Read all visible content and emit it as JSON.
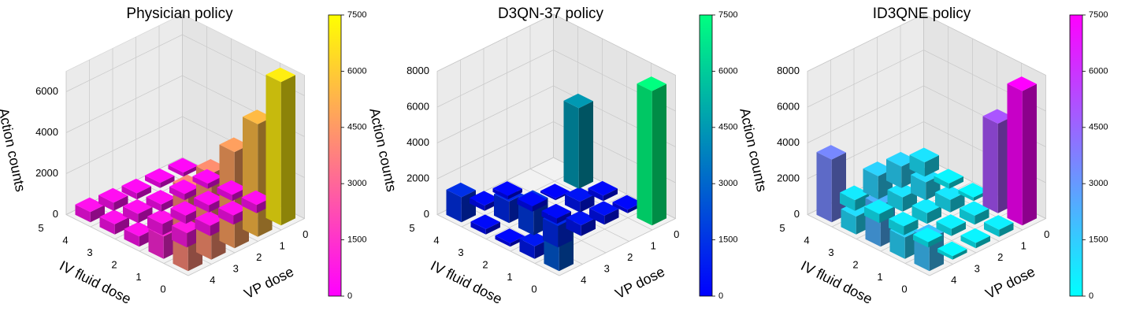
{
  "chart_data": [
    {
      "type": "bar3d",
      "title": "Physician policy",
      "xlabel": "VP dose",
      "ylabel": "IV fluid dose",
      "zlabel": "Action counts",
      "x_categories": [
        "0",
        "1",
        "2",
        "3",
        "4"
      ],
      "y_categories": [
        "0",
        "1",
        "2",
        "3",
        "4"
      ],
      "y_ticks_shown": [
        "0",
        "1",
        "2",
        "3",
        "4",
        "5"
      ],
      "z_ticks": [
        "0",
        "2000",
        "4000",
        "6000"
      ],
      "zlim": [
        0,
        7000
      ],
      "colormap": "spring",
      "colormap_stops": [
        "#ff00ff",
        "#ffff00"
      ],
      "colorbar_ticks": [
        "0",
        "1500",
        "3000",
        "4500",
        "6000",
        "7500"
      ],
      "colorbar_range": [
        0,
        7500
      ],
      "counts": [
        [
          7000,
          5500,
          4700,
          4200,
          4000
        ],
        [
          400,
          450,
          500,
          700,
          1100
        ],
        [
          300,
          350,
          400,
          550,
          500
        ],
        [
          250,
          300,
          350,
          450,
          500
        ],
        [
          200,
          250,
          300,
          400,
          500
        ]
      ]
    },
    {
      "type": "bar3d",
      "title": "D3QN-37 policy",
      "xlabel": "VP dose",
      "ylabel": "IV fluid dose",
      "zlabel": "Action counts",
      "x_categories": [
        "0",
        "1",
        "2",
        "3",
        "4"
      ],
      "y_categories": [
        "0",
        "1",
        "2",
        "3",
        "4"
      ],
      "y_ticks_shown": [
        "0",
        "1",
        "2",
        "3",
        "4",
        "5"
      ],
      "z_ticks": [
        "0",
        "2000",
        "4000",
        "6000",
        "8000"
      ],
      "zlim": [
        0,
        8000
      ],
      "colormap": "winter",
      "colormap_stops": [
        "#0000ff",
        "#00ff80"
      ],
      "colorbar_ticks": [
        "0",
        "1500",
        "3000",
        "4500",
        "6000",
        "7500"
      ],
      "colorbar_range": [
        0,
        7500
      ],
      "counts": [
        [
          7500,
          0,
          0,
          0,
          2600
        ],
        [
          200,
          500,
          600,
          1200,
          700
        ],
        [
          300,
          600,
          300,
          1700,
          200
        ],
        [
          4500,
          100,
          300,
          1200,
          300
        ],
        [
          0,
          0,
          200,
          300,
          1400
        ]
      ]
    },
    {
      "type": "bar3d",
      "title": "ID3QNE policy",
      "xlabel": "VP dose",
      "ylabel": "IV fluid dose",
      "zlabel": "Action counts",
      "x_categories": [
        "0",
        "1",
        "2",
        "3",
        "4"
      ],
      "y_categories": [
        "0",
        "1",
        "2",
        "3",
        "4"
      ],
      "y_ticks_shown": [
        "0",
        "1",
        "2",
        "3",
        "4",
        "5"
      ],
      "z_ticks": [
        "0",
        "2000",
        "4000",
        "6000",
        "8000"
      ],
      "zlim": [
        0,
        8000
      ],
      "colormap": "cool",
      "colormap_stops": [
        "#00ffff",
        "#ff00ff"
      ],
      "colorbar_ticks": [
        "0",
        "1500",
        "3000",
        "4500",
        "6000",
        "7500"
      ],
      "colorbar_range": [
        0,
        7500
      ],
      "counts": [
        [
          7500,
          400,
          300,
          200,
          1800
        ],
        [
          5000,
          500,
          400,
          300,
          1200
        ],
        [
          200,
          700,
          600,
          500,
          2300
        ],
        [
          300,
          1000,
          800,
          500,
          1000
        ],
        [
          800,
          1200,
          1300,
          600,
          3500
        ]
      ]
    }
  ]
}
